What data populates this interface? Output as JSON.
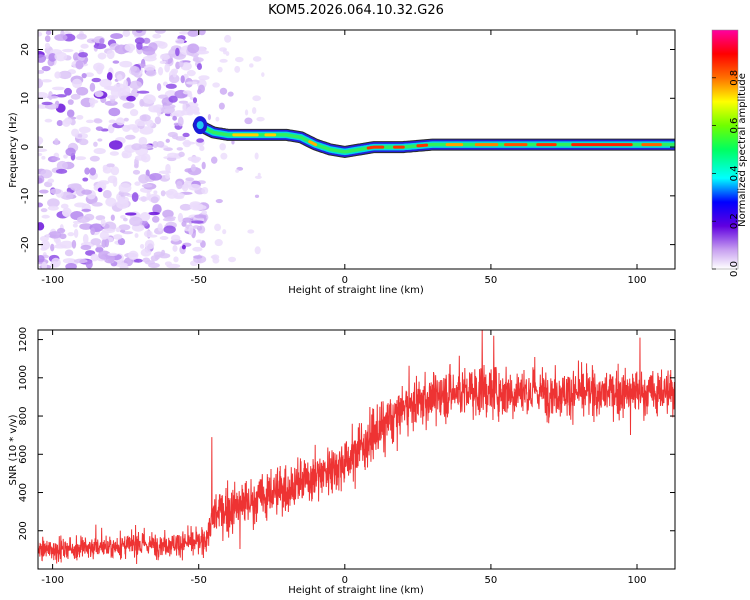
{
  "title": "KOM5.2026.064.10.32.G26",
  "chart_data": [
    {
      "type": "heatmap",
      "name": "spectrogram",
      "xlabel": "Height of straight line (km)",
      "ylabel": "Frequency (Hz)",
      "xlim": [
        -105,
        113
      ],
      "ylim": [
        -25,
        24
      ],
      "xticks": [
        -100,
        -50,
        0,
        50,
        100
      ],
      "yticks": [
        -20,
        -10,
        0,
        10,
        20
      ],
      "noise_region_x": [
        -105,
        -48
      ],
      "track": {
        "x": [
          -50,
          -45,
          -40,
          -35,
          -30,
          -25,
          -20,
          -15,
          -10,
          -5,
          0,
          10,
          20,
          30,
          50,
          80,
          100,
          113
        ],
        "freq": [
          4.5,
          3.0,
          2.5,
          2.5,
          2.5,
          2.5,
          2.5,
          2.0,
          0.5,
          -0.5,
          -1.0,
          0.0,
          0.0,
          0.5,
          0.5,
          0.5,
          0.5,
          0.5
        ]
      },
      "colorbar": {
        "label": "Normalized spectral amplitude",
        "range": [
          0,
          1
        ],
        "ticks": [
          "0.0",
          "0.2",
          "0.4",
          "0.6",
          "0.8"
        ]
      }
    },
    {
      "type": "line",
      "name": "snr",
      "color": "#ee3333",
      "xlabel": "Height of straight line (km)",
      "ylabel": "SNR (10 * v/v)",
      "xlim": [
        -105,
        113
      ],
      "ylim": [
        0,
        1250
      ],
      "xticks": [
        -100,
        -50,
        0,
        50,
        100
      ],
      "yticks": [
        200,
        400,
        600,
        800,
        1000,
        1200
      ],
      "trend": {
        "x": [
          -105,
          -48,
          -45,
          -20,
          0,
          10,
          20,
          30,
          40,
          60,
          80,
          113
        ],
        "mean": [
          100,
          140,
          280,
          420,
          560,
          700,
          840,
          900,
          930,
          930,
          920,
          920
        ],
        "spread": [
          55,
          60,
          110,
          120,
          120,
          120,
          110,
          120,
          130,
          120,
          110,
          110
        ]
      },
      "spikes": [
        {
          "x": -45.5,
          "y": 690
        },
        {
          "x": 47,
          "y": 1250
        },
        {
          "x": 51,
          "y": 1220
        },
        {
          "x": 101,
          "y": 1210
        }
      ]
    }
  ]
}
